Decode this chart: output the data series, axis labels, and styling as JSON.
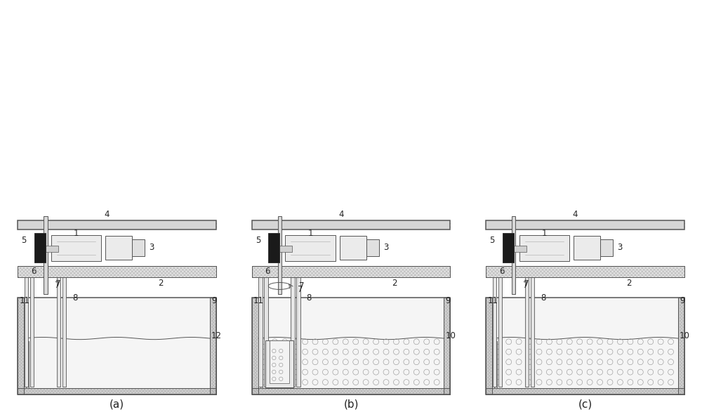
{
  "bg_color": "#ffffff",
  "lc": "#555555",
  "lc2": "#444444",
  "fill_light": "#f0f0f0",
  "fill_med": "#e0e0e0",
  "fill_dark": "#c8c8c8",
  "fill_black": "#1a1a1a",
  "fill_xhatch": "#e8e8e8",
  "bubble_ec": "#888888",
  "label_fontsize": 8.5,
  "title_fontsize": 11,
  "title_a": "(a)",
  "title_b": "(b)",
  "title_c": "(c)"
}
